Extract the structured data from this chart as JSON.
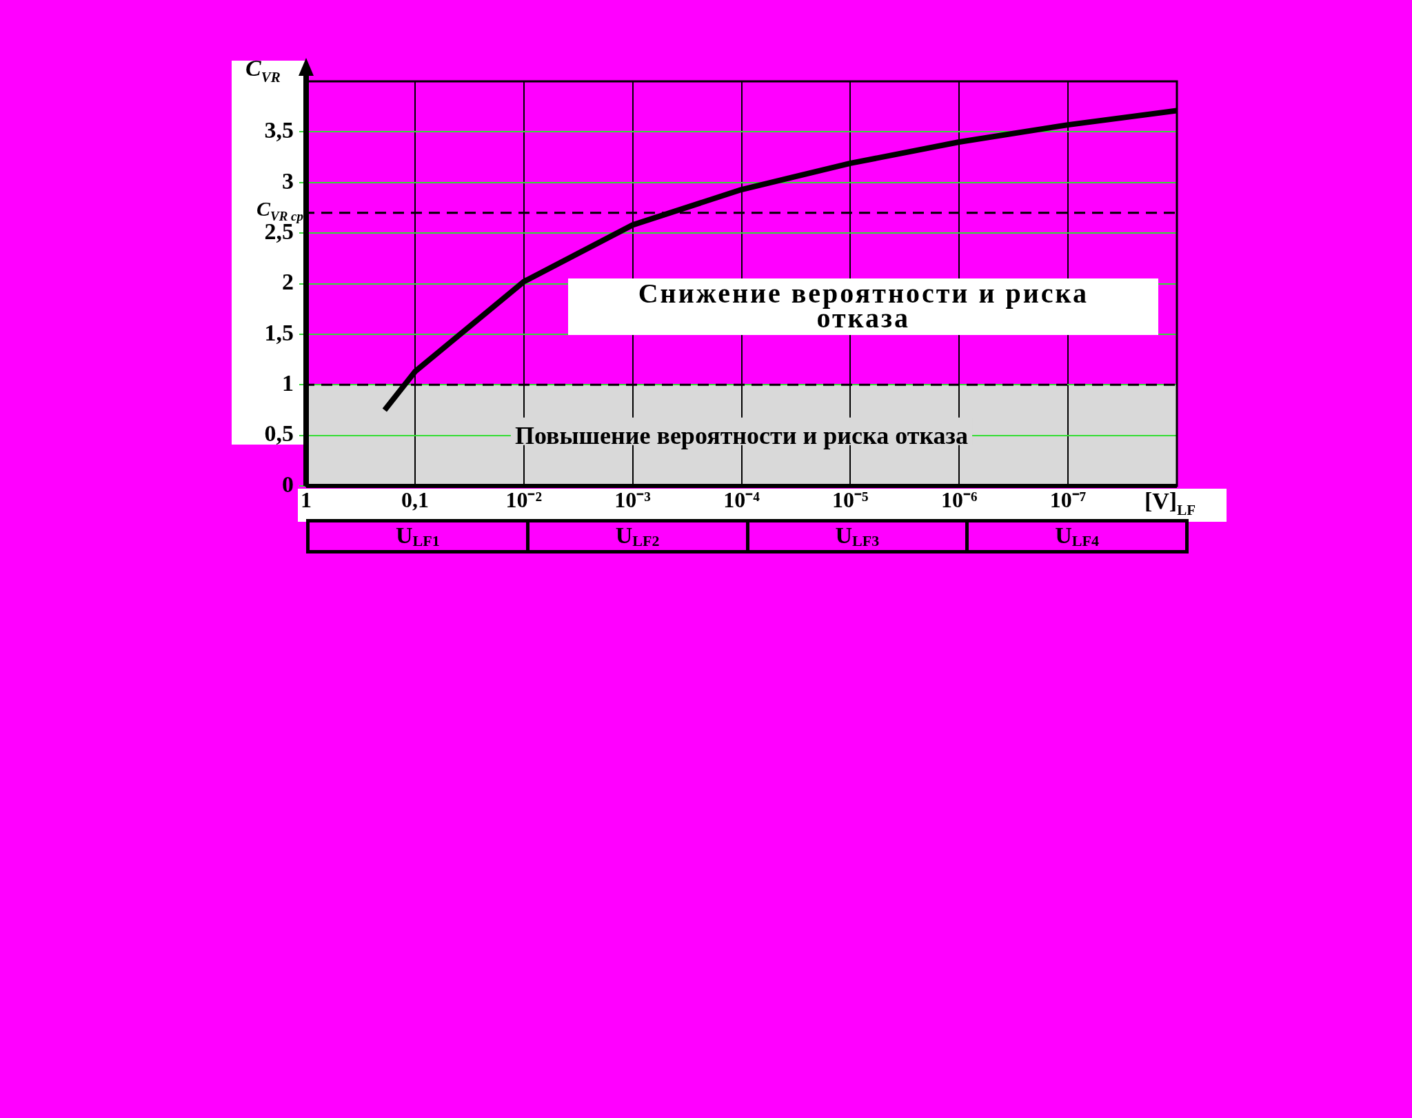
{
  "chart_data": {
    "type": "line",
    "ylabel": "C$_{VR}$",
    "xlabel": "[V]$_{LF}$",
    "log": "x",
    "xlim": [
      1,
      1e-08
    ],
    "xticks": [
      {
        "value": 1,
        "label": "1"
      },
      {
        "value": 0.1,
        "label": "0,1"
      },
      {
        "value": 0.01,
        "label": "10⁻²"
      },
      {
        "value": 0.001,
        "label": "10⁻³"
      },
      {
        "value": 0.0001,
        "label": "10⁻⁴"
      },
      {
        "value": 1e-05,
        "label": "10⁻⁵"
      },
      {
        "value": 1e-06,
        "label": "10⁻⁶"
      },
      {
        "value": 1e-07,
        "label": "10⁻⁷"
      }
    ],
    "ylim": [
      0,
      4
    ],
    "yticks": [
      0,
      {
        "value": 0.5,
        "label": "0,5"
      },
      1,
      {
        "value": 1.5,
        "label": "1,5"
      },
      2,
      {
        "value": 2.5,
        "label": "2,5"
      },
      3,
      {
        "value": 3.5,
        "label": "3,5"
      }
    ],
    "series": [
      {
        "color": "#000000",
        "x": [
          0.19,
          0.1,
          0.01,
          0.001,
          0.0001,
          1e-05,
          1e-06,
          1e-07,
          1e-08
        ],
        "values": [
          0.75,
          1.13,
          2.02,
          2.58,
          2.93,
          3.19,
          3.4,
          3.57,
          3.71
        ]
      }
    ],
    "ref_lines": [
      {
        "axis": "y",
        "value": 2.7,
        "label": "C$_{VR cp}$",
        "line_style": "dashed"
      },
      {
        "axis": "y",
        "value": 1,
        "line_style": "dashed"
      }
    ],
    "bands": [
      {
        "axis": "y",
        "from": 0,
        "to": 1,
        "label": "Повышение вероятности и риска отказа",
        "color": "#d9d9d9"
      }
    ],
    "annotations": [
      "Снижение вероятности и риска отказа",
      "U$_{LF1}$",
      "U$_{LF2}$",
      "U$_{LF3}$",
      "U$_{LF4}$"
    ],
    "grid": true,
    "legend": false,
    "marker": "none",
    "line_style": "solid"
  }
}
